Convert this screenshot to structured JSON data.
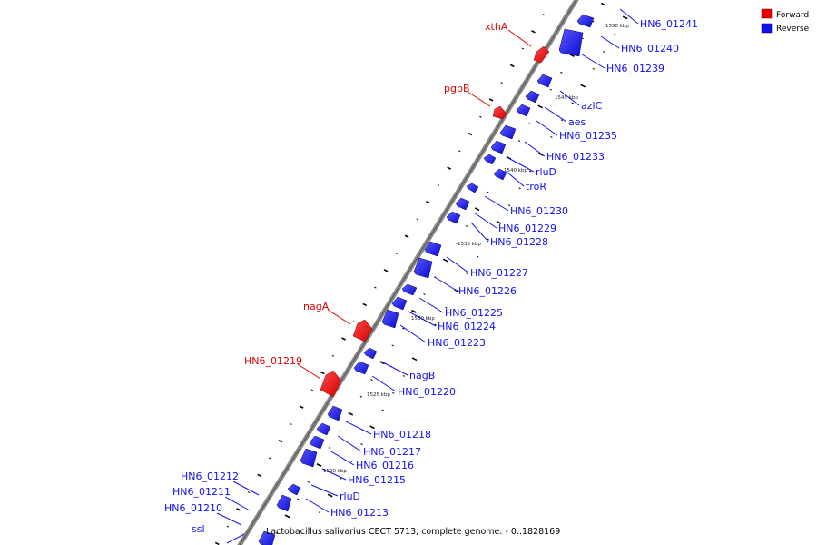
{
  "legend": [
    {
      "label": "Forward",
      "color": "#ee0000"
    },
    {
      "label": "Reverse",
      "color": "#1111ee"
    }
  ],
  "caption": "Lactobacillus salivarius CECT 5713, complete genome. - 0..1828169",
  "ticks": [
    {
      "label": "1550 kbp"
    },
    {
      "label": "1545 kbp"
    },
    {
      "label": "1540 kbp"
    },
    {
      "label": "1535 kbp"
    },
    {
      "label": "1530 kbp"
    },
    {
      "label": "1525 kbp"
    },
    {
      "label": "1520 kbp"
    }
  ],
  "forward_genes": [
    {
      "name": "xthA"
    },
    {
      "name": "pgpB"
    },
    {
      "name": "nagA"
    },
    {
      "name": "HN6_01219"
    }
  ],
  "reverse_genes": [
    {
      "name": "HN6_01241"
    },
    {
      "name": "HN6_01240"
    },
    {
      "name": "HN6_01239"
    },
    {
      "name": "azlC"
    },
    {
      "name": "aes"
    },
    {
      "name": "HN6_01235"
    },
    {
      "name": "HN6_01233"
    },
    {
      "name": "rluD"
    },
    {
      "name": "troR"
    },
    {
      "name": "HN6_01230"
    },
    {
      "name": "HN6_01229"
    },
    {
      "name": "HN6_01228"
    },
    {
      "name": "HN6_01227"
    },
    {
      "name": "HN6_01226"
    },
    {
      "name": "HN6_01225"
    },
    {
      "name": "HN6_01224"
    },
    {
      "name": "HN6_01223"
    },
    {
      "name": "nagB"
    },
    {
      "name": "HN6_01220"
    },
    {
      "name": "HN6_01218"
    },
    {
      "name": "HN6_01217"
    },
    {
      "name": "HN6_01216"
    },
    {
      "name": "HN6_01215"
    },
    {
      "name": "rluD"
    },
    {
      "name": "HN6_01213"
    },
    {
      "name": "HN6_01212"
    },
    {
      "name": "HN6_01211"
    },
    {
      "name": "HN6_01210"
    },
    {
      "name": "ssl"
    }
  ]
}
